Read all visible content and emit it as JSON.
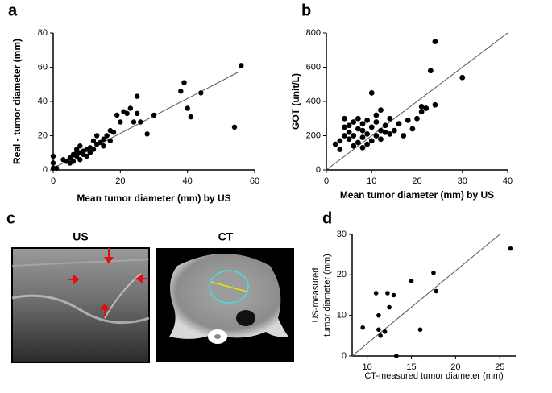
{
  "chart_data": [
    {
      "type": "scatter",
      "panel_label": "a",
      "xlabel": "Mean tumor diameter (mm) by US",
      "ylabel": "Real - tumor diameter (mm)",
      "xlim": [
        0,
        60
      ],
      "ylim": [
        0,
        80
      ],
      "xticks": [
        0,
        20,
        40,
        60
      ],
      "yticks": [
        0,
        20,
        40,
        60,
        80
      ],
      "color": "#000000",
      "x": [
        0,
        0,
        0,
        1,
        3,
        4,
        5,
        5,
        6,
        6,
        7,
        7,
        7,
        8,
        8,
        8,
        9,
        9,
        10,
        10,
        11,
        11,
        12,
        12,
        13,
        13,
        14,
        15,
        15,
        16,
        17,
        17,
        18,
        19,
        20,
        21,
        22,
        23,
        24,
        25,
        25,
        26,
        28,
        30,
        38,
        39,
        40,
        41,
        44,
        54,
        56
      ],
      "y": [
        1,
        4,
        8,
        1,
        6,
        5,
        4,
        7,
        9,
        5,
        8,
        10,
        12,
        6,
        10,
        14,
        11,
        9,
        12,
        8,
        10,
        13,
        12,
        17,
        15,
        20,
        16,
        18,
        14,
        20,
        23,
        17,
        22,
        32,
        28,
        34,
        33,
        36,
        28,
        43,
        33,
        28,
        21,
        32,
        46,
        51,
        36,
        31,
        45,
        25,
        61
      ],
      "trend_line": {
        "x": [
          0,
          55
        ],
        "y": [
          1,
          57
        ]
      }
    },
    {
      "type": "scatter",
      "panel_label": "b",
      "xlabel": "Mean tumor diameter (mm) by US",
      "ylabel": "GOT (unit/L)",
      "xlim": [
        0,
        40
      ],
      "ylim": [
        0,
        800
      ],
      "xticks": [
        0,
        10,
        20,
        30,
        40
      ],
      "yticks": [
        0,
        200,
        400,
        600,
        800
      ],
      "color": "#000000",
      "x": [
        2,
        3,
        3,
        4,
        4,
        4,
        5,
        5,
        5,
        6,
        6,
        6,
        7,
        7,
        7,
        8,
        8,
        8,
        8,
        9,
        9,
        9,
        10,
        10,
        10,
        11,
        11,
        11,
        12,
        12,
        12,
        13,
        13,
        14,
        14,
        15,
        16,
        17,
        18,
        19,
        20,
        21,
        21,
        22,
        23,
        24,
        24,
        30
      ],
      "y": [
        150,
        170,
        120,
        200,
        250,
        300,
        180,
        220,
        260,
        140,
        200,
        280,
        160,
        240,
        300,
        130,
        190,
        230,
        270,
        150,
        210,
        290,
        170,
        250,
        450,
        200,
        280,
        320,
        180,
        230,
        350,
        220,
        260,
        210,
        300,
        230,
        270,
        200,
        290,
        240,
        300,
        340,
        370,
        360,
        580,
        750,
        380,
        540
      ],
      "trend_line": {
        "x": [
          0,
          40
        ],
        "y": [
          0,
          800
        ]
      }
    },
    {
      "type": "scatter",
      "panel_label": "d",
      "xlabel": "CT-measured tumor diameter (mm)",
      "ylabel": [
        "US-measured",
        "tumor diameter (mm)"
      ],
      "xlim": [
        8.3,
        26.8
      ],
      "ylim": [
        0,
        30
      ],
      "xticks": [
        10,
        15,
        20,
        25
      ],
      "yticks": [
        0,
        10,
        20,
        30
      ],
      "color": "#000000",
      "x": [
        9.5,
        11,
        11.3,
        11.3,
        11.5,
        12,
        12.3,
        12.5,
        13,
        13.3,
        15,
        16,
        17.5,
        17.8,
        26.2
      ],
      "y": [
        7,
        15.5,
        10,
        6.5,
        5,
        6,
        15.5,
        12,
        15,
        0,
        18.5,
        6.5,
        20.5,
        16,
        26.5
      ],
      "trend_line": {
        "x": [
          8.3,
          25
        ],
        "y": [
          0,
          30
        ]
      }
    }
  ],
  "panel_c": {
    "label": "c",
    "images": [
      "US",
      "CT"
    ]
  }
}
